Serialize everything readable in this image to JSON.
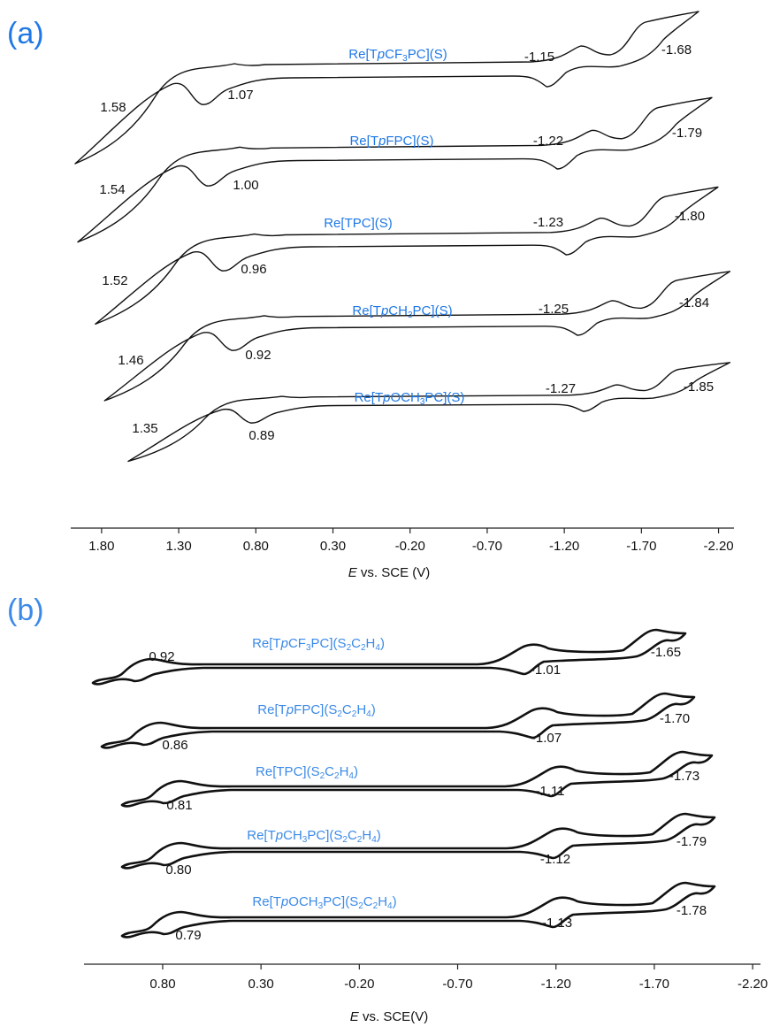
{
  "chart_data": [
    {
      "type": "line",
      "panel": "(a)",
      "xlabel": "E vs. SCE (V)",
      "xlim": [
        2.0,
        -2.3
      ],
      "xticks": [
        {
          "value": 1.8,
          "label": "1.80"
        },
        {
          "value": 1.3,
          "label": "1.30"
        },
        {
          "value": 0.8,
          "label": "0.80"
        },
        {
          "value": 0.3,
          "label": "0.30"
        },
        {
          "value": -0.2,
          "label": "-0.20"
        },
        {
          "value": -0.7,
          "label": "-0.70"
        },
        {
          "value": -1.2,
          "label": "-1.20"
        },
        {
          "value": -1.7,
          "label": "-1.70"
        },
        {
          "value": -2.2,
          "label": "-2.20"
        }
      ],
      "label_color": "#1f78e6",
      "line_color": "#111111",
      "series": [
        {
          "name": "Re[TpCF3PC](S)",
          "annotations": [
            "1.58",
            "1.07",
            "-1.15",
            "-1.68"
          ]
        },
        {
          "name": "Re[TpFPC](S)",
          "annotations": [
            "1.54",
            "1.00",
            "-1.22",
            "-1.79"
          ]
        },
        {
          "name": "Re[TPC](S)",
          "annotations": [
            "1.52",
            "0.96",
            "-1.23",
            "-1.80"
          ]
        },
        {
          "name": "Re[TpCH3PC](S)",
          "annotations": [
            "1.46",
            "0.92",
            "-1.25",
            "-1.84"
          ]
        },
        {
          "name": "Re[TpOCH3PC](S)",
          "annotations": [
            "1.35",
            "0.89",
            "-1.27",
            "-1.85"
          ]
        }
      ]
    },
    {
      "type": "line",
      "panel": "(b)",
      "xlabel": "E vs. SCE(V)",
      "xlim": [
        1.2,
        -2.24
      ],
      "xticks": [
        {
          "value": 0.8,
          "label": "0.80"
        },
        {
          "value": 0.3,
          "label": "0.30"
        },
        {
          "value": -0.2,
          "label": "-0.20"
        },
        {
          "value": -0.7,
          "label": "-0.70"
        },
        {
          "value": -1.2,
          "label": "-1.20"
        },
        {
          "value": -1.7,
          "label": "-1.70"
        },
        {
          "value": -2.2,
          "label": "-2.20"
        }
      ],
      "label_color": "#3b8ae8",
      "line_color": "#111111",
      "series": [
        {
          "name": "Re[TpCF3PC](S2C2H4)",
          "annotations": [
            "0.92",
            "-1.01",
            "-1.65"
          ]
        },
        {
          "name": "Re[TpFPC](S2C2H4)",
          "annotations": [
            "0.86",
            "-1.07",
            "-1.70"
          ]
        },
        {
          "name": "Re[TPC](S2C2H4)",
          "annotations": [
            "0.81",
            "-1.11",
            "-1.73"
          ]
        },
        {
          "name": "Re[TpCH3PC](S2C2H4)",
          "annotations": [
            "0.80",
            "-1.12",
            "-1.79"
          ]
        },
        {
          "name": "Re[TpOCH3PC](S2C2H4)",
          "annotations": [
            "0.79",
            "-1.13",
            "-1.78"
          ]
        }
      ]
    }
  ]
}
